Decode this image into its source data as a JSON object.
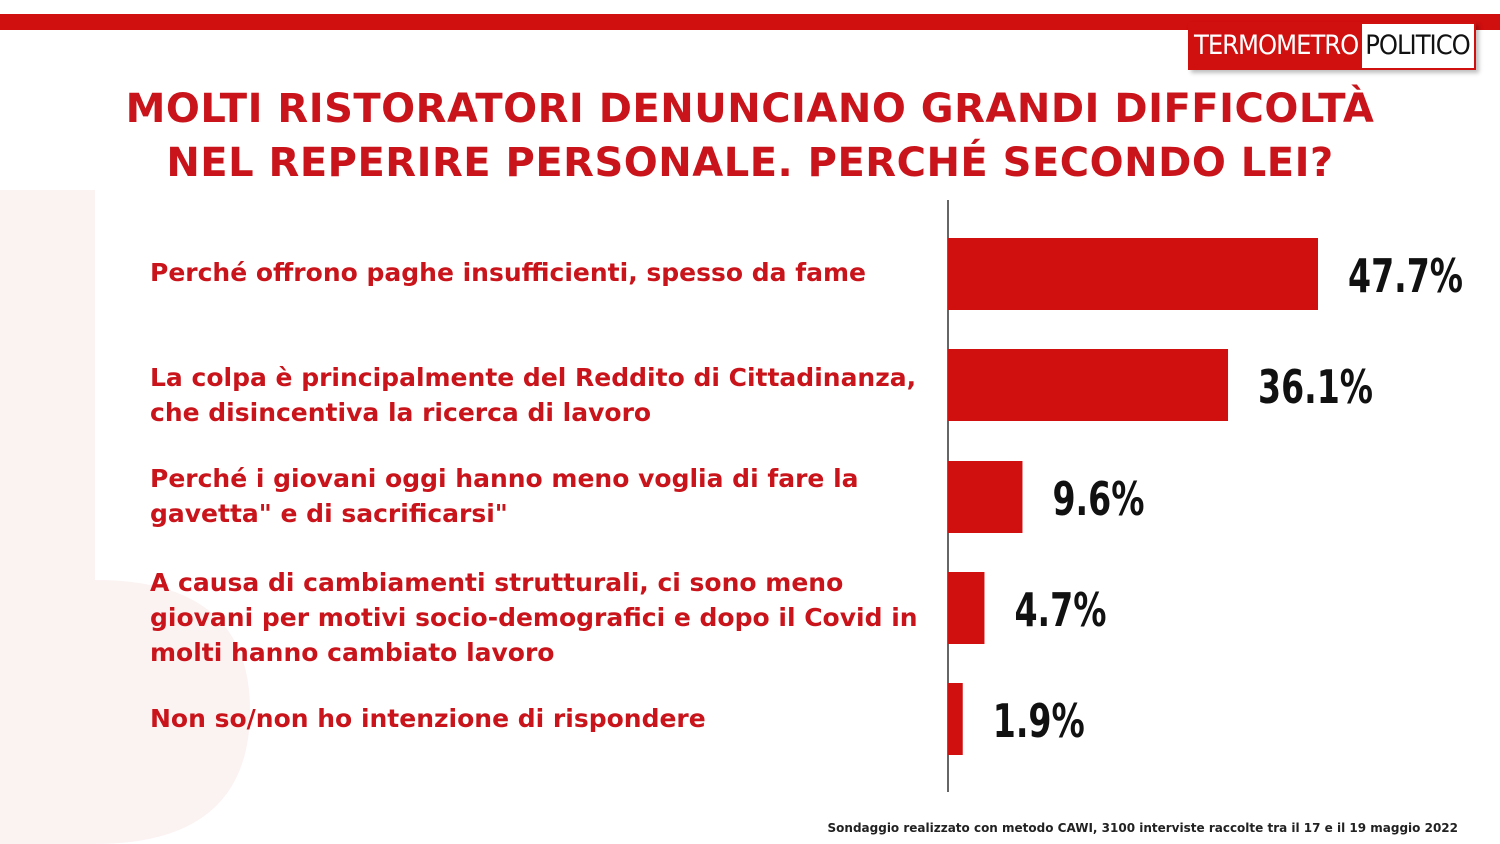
{
  "brand": {
    "part1": "TERMOMETRO",
    "part2": "POLITICO"
  },
  "colors": {
    "accent": "#d00f0f",
    "title": "#c8141a",
    "bar": "#d00f0f",
    "value": "#111111"
  },
  "title": {
    "line1": "MOLTI RISTORATORI DENUNCIANO GRANDI DIFFICOLTÀ",
    "line2": "NEL REPERIRE PERSONALE. PERCHÉ SECONDO LEI?"
  },
  "chart_data": {
    "type": "bar",
    "orientation": "horizontal",
    "title": "MOLTI RISTORATORI DENUNCIANO GRANDI DIFFICOLTÀ NEL REPERIRE PERSONALE. PERCHÉ SECONDO LEI?",
    "categories": [
      "Perché offrono paghe insufficienti, spesso da fame",
      "La colpa è principalmente del Reddito di Cittadinanza, che disincentiva la ricerca di lavoro",
      "Perché i giovani oggi hanno meno voglia di fare la gavetta\" e di sacrificarsi\"",
      "A causa di cambiamenti strutturali, ci sono meno giovani per motivi socio-demografici e dopo il Covid in molti hanno cambiato lavoro",
      "Non so/non ho intenzione di rispondere"
    ],
    "values": [
      47.7,
      36.1,
      9.6,
      4.7,
      1.9
    ],
    "value_labels": [
      "47.7%",
      "36.1%",
      "9.6%",
      "4.7%",
      "1.9%"
    ],
    "unit": "%",
    "grid": false,
    "legend": "none"
  },
  "footnote": "Sondaggio realizzato con metodo CAWI, 3100 interviste raccolte tra il 17 e il 19 maggio 2022"
}
